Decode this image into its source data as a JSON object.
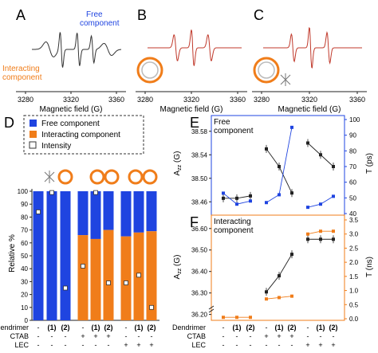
{
  "panels": {
    "A": "A",
    "B": "B",
    "C": "C",
    "D": "D",
    "E": "E",
    "F": "F"
  },
  "epr": {
    "xlabel": "Magnetic field (G)",
    "ticks": [
      "3280",
      "3320",
      "3360"
    ],
    "free_label_1": "Free",
    "free_label_2": "component",
    "interacting_label_1": "Interacting",
    "interacting_label_2": "component"
  },
  "legend": {
    "free": "Free component",
    "interacting": "Interacting component",
    "intensity": "Intensity"
  },
  "colors": {
    "free": "#1f44e0",
    "interacting": "#f07d1a",
    "black": "#222222",
    "epr_fit": "#c0392b"
  },
  "chart_data": [
    {
      "type": "bar",
      "panel": "D",
      "ylabel": "Relative %",
      "ylim": [
        0,
        100
      ],
      "yticks": [
        "0",
        "10",
        "20",
        "30",
        "40",
        "50",
        "60",
        "70",
        "80",
        "90",
        "100"
      ],
      "categories": [
        "1",
        "2",
        "3",
        "4",
        "5",
        "6",
        "7",
        "8",
        "9"
      ],
      "series": [
        {
          "name": "Free component",
          "values": [
            100,
            100,
            100,
            34,
            37,
            30,
            35,
            32,
            31
          ]
        },
        {
          "name": "Interacting component",
          "values": [
            0,
            0,
            0,
            66,
            63,
            70,
            65,
            68,
            69
          ]
        },
        {
          "name": "Intensity",
          "values": [
            84,
            99,
            25,
            42,
            99,
            29,
            29,
            35,
            10
          ]
        }
      ]
    },
    {
      "type": "line",
      "panel": "E",
      "inset_label_1": "Free",
      "inset_label_2": "component",
      "ylabel_left": "A",
      "ylabel_left_sub": "zz",
      "ylabel_left_unit": " (G)",
      "ylabel_right": "T (ps)",
      "yticks_left": [
        "38.46",
        "38.50",
        "38.54",
        "38.58"
      ],
      "yticks_right": [
        "40",
        "50",
        "60",
        "70",
        "80",
        "90",
        "100"
      ],
      "ylim_left": [
        38.44,
        38.6
      ],
      "ylim_right": [
        40,
        100
      ],
      "series": [
        {
          "axis": "left",
          "color": "black",
          "x": [
            1,
            2,
            3,
            4,
            5,
            6,
            7,
            8,
            9
          ],
          "values": [
            38.466,
            38.466,
            38.47,
            38.55,
            38.52,
            38.475,
            38.56,
            38.54,
            38.52
          ]
        },
        {
          "axis": "right",
          "color": "blue",
          "x": [
            1,
            2,
            3,
            4,
            5,
            6,
            7,
            8,
            9
          ],
          "values": [
            53,
            46,
            48,
            47,
            52,
            95,
            44,
            46,
            51
          ]
        }
      ]
    },
    {
      "type": "line",
      "panel": "F",
      "inset_label_1": "Interacting",
      "inset_label_2": "component",
      "ylabel_left": "A",
      "ylabel_left_sub": "zz",
      "ylabel_left_unit": " (G)",
      "ylabel_right": "T (ns)",
      "yticks_left": [
        "36.20",
        "36.30",
        "36.40",
        "36.50",
        "36.60"
      ],
      "yticks_right": [
        "0.0",
        "0.5",
        "1.0",
        "1.5",
        "2.0",
        "2.5",
        "3.0",
        "3.5"
      ],
      "ylim_left": [
        36.18,
        36.64
      ],
      "ylim_right": [
        0,
        3.5
      ],
      "series": [
        {
          "axis": "left",
          "color": "black",
          "x": [
            4,
            5,
            6,
            7,
            8,
            9
          ],
          "values": [
            36.305,
            36.38,
            36.48,
            36.55,
            36.55,
            36.55
          ]
        },
        {
          "axis": "right",
          "color": "orange",
          "x": [
            1,
            2,
            3,
            4,
            5,
            6,
            7,
            8,
            9
          ],
          "values": [
            0.05,
            0.05,
            0.05,
            0.7,
            0.75,
            0.8,
            3.0,
            3.1,
            3.1
          ]
        }
      ]
    }
  ],
  "conditions": {
    "row_labels": [
      "Dendrimer",
      "CTAB",
      "LEC"
    ],
    "dendrimer": [
      "-",
      "(1)",
      "(2)",
      "-",
      "(1)",
      "(2)",
      "-",
      "(1)",
      "(2)"
    ],
    "ctab": [
      "-",
      "-",
      "-",
      "+",
      "+",
      "+",
      "-",
      "-",
      "-"
    ],
    "lec": [
      "-",
      "-",
      "-",
      "-",
      "-",
      "-",
      "+",
      "+",
      "+"
    ]
  }
}
